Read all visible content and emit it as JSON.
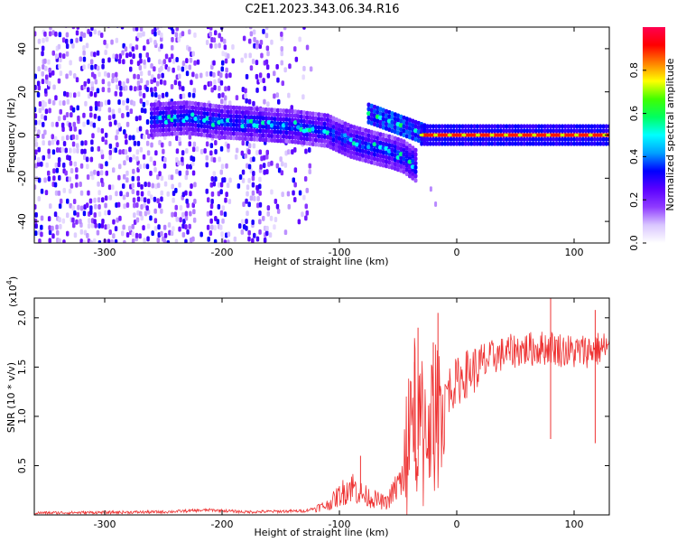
{
  "title": "C2E1.2023.343.06.34.R16",
  "chart_data": [
    {
      "type": "heatmap",
      "xlabel": "Height of straight line (km)",
      "ylabel": "Frequency (Hz)",
      "xlim": [
        -360,
        130
      ],
      "ylim": [
        -50,
        50
      ],
      "xticks": [
        -300,
        -200,
        -100,
        0,
        100
      ],
      "yticks": [
        -40,
        -20,
        0,
        20,
        40
      ],
      "colorbar": {
        "label": "Normalized spectral amplitude",
        "range": [
          0,
          1
        ],
        "ticks": [
          "0.0",
          "0.2",
          "0.4",
          "0.6",
          "0.8"
        ],
        "colors": [
          "#ffffff",
          "#d9c6ff",
          "#8f3bff",
          "#5a00ff",
          "#0000ff",
          "#00a0ff",
          "#00ffff",
          "#00ff60",
          "#40ff00",
          "#ffff00",
          "#ff8000",
          "#ff0000",
          "#ff0050"
        ]
      },
      "features": {
        "carrier_line": {
          "x_start": -30,
          "x_end": 130,
          "frequency": 0,
          "amplitude": 0.9
        },
        "main_trace": [
          {
            "x": -260,
            "y": 7
          },
          {
            "x": -230,
            "y": 8
          },
          {
            "x": -200,
            "y": 6
          },
          {
            "x": -170,
            "y": 5
          },
          {
            "x": -140,
            "y": 4
          },
          {
            "x": -110,
            "y": 2
          },
          {
            "x": -90,
            "y": -3
          },
          {
            "x": -70,
            "y": -6
          },
          {
            "x": -55,
            "y": -8
          },
          {
            "x": -45,
            "y": -10
          },
          {
            "x": -35,
            "y": -14
          }
        ],
        "upper_branch": [
          {
            "x": -75,
            "y": 10
          },
          {
            "x": -60,
            "y": 7
          },
          {
            "x": -45,
            "y": 4
          },
          {
            "x": -35,
            "y": 2
          },
          {
            "x": -25,
            "y": 0
          }
        ],
        "scatter_tail": [
          {
            "x": -22,
            "y": -25
          },
          {
            "x": -18,
            "y": -32
          }
        ],
        "noise_region": {
          "x_start": -360,
          "x_end": -125
        }
      }
    },
    {
      "type": "line",
      "xlabel": "Height of straight line (km)",
      "ylabel": "SNR (10 * v/v)",
      "yunit_label": "(x10",
      "yunit_exp": "4",
      "yunit_close": ")",
      "xlim": [
        -360,
        130
      ],
      "ylim": [
        0,
        2.2
      ],
      "xticks": [
        -300,
        -200,
        -100,
        0,
        100
      ],
      "yticks": [
        "0.5",
        "1.0",
        "1.5",
        "2.0"
      ],
      "color": "#ee3333",
      "envelope": [
        {
          "x": -360,
          "y": 0.02
        },
        {
          "x": -250,
          "y": 0.03
        },
        {
          "x": -210,
          "y": 0.05
        },
        {
          "x": -180,
          "y": 0.03
        },
        {
          "x": -130,
          "y": 0.04
        },
        {
          "x": -110,
          "y": 0.1
        },
        {
          "x": -90,
          "y": 0.3
        },
        {
          "x": -80,
          "y": 0.2
        },
        {
          "x": -60,
          "y": 0.12
        },
        {
          "x": -45,
          "y": 0.4
        },
        {
          "x": -38,
          "y": 1.2
        },
        {
          "x": -30,
          "y": 0.9
        },
        {
          "x": -20,
          "y": 1.0
        },
        {
          "x": -10,
          "y": 1.25
        },
        {
          "x": 0,
          "y": 1.35
        },
        {
          "x": 10,
          "y": 1.45
        },
        {
          "x": 20,
          "y": 1.5
        },
        {
          "x": 30,
          "y": 1.6
        },
        {
          "x": 50,
          "y": 1.67
        },
        {
          "x": 80,
          "y": 1.7
        },
        {
          "x": 100,
          "y": 1.65
        },
        {
          "x": 130,
          "y": 1.7
        }
      ],
      "spikes": [
        {
          "x": -82,
          "y": 0.6
        },
        {
          "x": -33,
          "y": 1.9
        },
        {
          "x": -16,
          "y": 2.05
        },
        {
          "x": -36,
          "y": 1.55
        },
        {
          "x": -20,
          "y": 1.75
        },
        {
          "x": 80,
          "y": 2.2
        },
        {
          "x": 118,
          "y": 2.08
        }
      ]
    }
  ]
}
